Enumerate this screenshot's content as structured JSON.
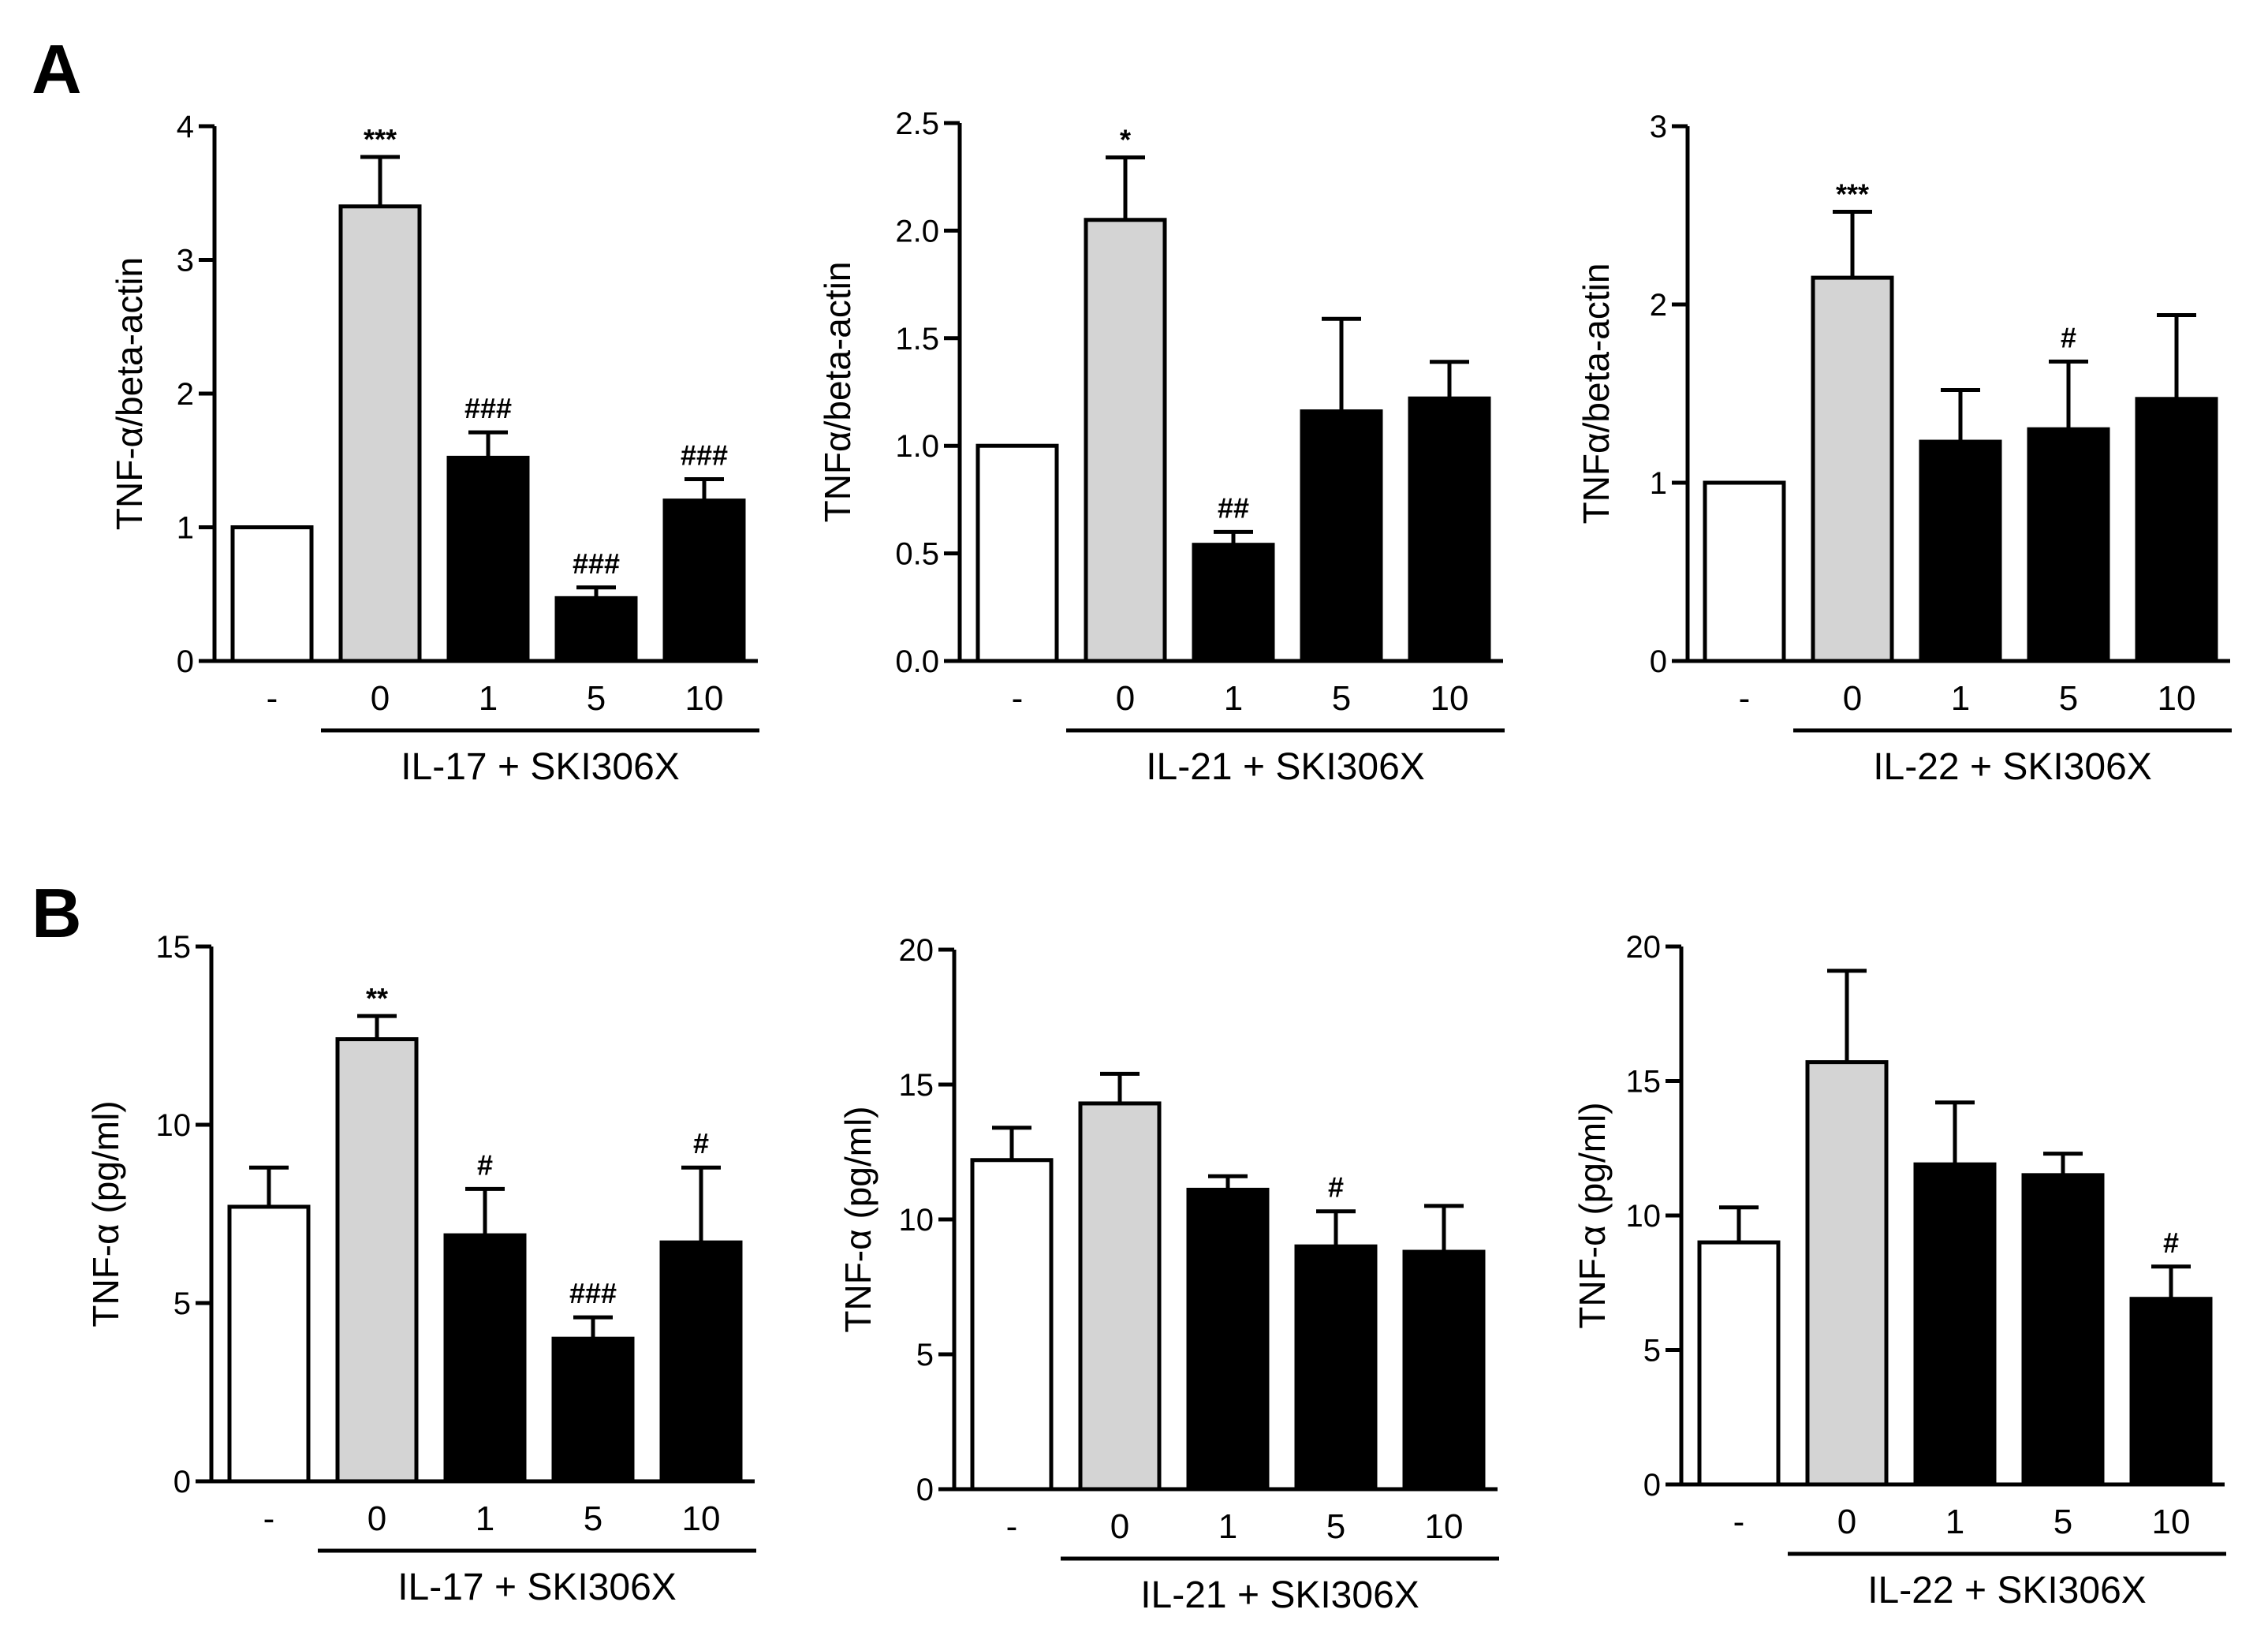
{
  "panels": [
    {
      "letter": "A",
      "row": 0
    },
    {
      "letter": "B",
      "row": 1
    }
  ],
  "chart_data": [
    {
      "type": "bar",
      "panel": "A",
      "title": "",
      "xlabel": "IL-17 + SKI306X",
      "ylabel": "TNF-α/beta-actin",
      "categories": [
        "-",
        "0",
        "1",
        "5",
        "10"
      ],
      "bar_fill": [
        "white",
        "lightgray",
        "black",
        "black",
        "black"
      ],
      "values": [
        1.0,
        3.4,
        1.52,
        0.47,
        1.2
      ],
      "errors": [
        0,
        0.37,
        0.19,
        0.08,
        0.16
      ],
      "annotations": [
        "",
        "***",
        "###",
        "###",
        "###"
      ],
      "ylim": [
        0,
        4
      ],
      "yticks": [
        0,
        1,
        2,
        3,
        4
      ],
      "ytick_labels": [
        "0",
        "1",
        "2",
        "3",
        "4"
      ]
    },
    {
      "type": "bar",
      "panel": "A",
      "title": "",
      "xlabel": "IL-21 + SKI306X",
      "ylabel": "TNFα/beta-actin",
      "categories": [
        "-",
        "0",
        "1",
        "5",
        "10"
      ],
      "bar_fill": [
        "white",
        "lightgray",
        "black",
        "black",
        "black"
      ],
      "values": [
        1.0,
        2.05,
        0.54,
        1.16,
        1.22
      ],
      "errors": [
        0,
        0.29,
        0.06,
        0.43,
        0.17
      ],
      "annotations": [
        "",
        "*",
        "##",
        "",
        ""
      ],
      "ylim": [
        0,
        2.5
      ],
      "yticks": [
        0,
        0.5,
        1,
        1.5,
        2,
        2.5
      ],
      "ytick_labels": [
        "0.0",
        "0.5",
        "1.0",
        "1.5",
        "2.0",
        "2.5"
      ]
    },
    {
      "type": "bar",
      "panel": "A",
      "title": "",
      "xlabel": "IL-22 + SKI306X",
      "ylabel": "TNFα/beta-actin",
      "categories": [
        "-",
        "0",
        "1",
        "5",
        "10"
      ],
      "bar_fill": [
        "white",
        "lightgray",
        "black",
        "black",
        "black"
      ],
      "values": [
        1.0,
        2.15,
        1.23,
        1.3,
        1.47
      ],
      "errors": [
        0,
        0.37,
        0.29,
        0.38,
        0.47
      ],
      "annotations": [
        "",
        "***",
        "",
        "#",
        ""
      ],
      "ylim": [
        0,
        3
      ],
      "yticks": [
        0,
        1,
        2,
        3
      ],
      "ytick_labels": [
        "0",
        "1",
        "2",
        "3"
      ]
    },
    {
      "type": "bar",
      "panel": "B",
      "title": "",
      "xlabel": "IL-17 + SKI306X",
      "ylabel": "TNF-α (pg/ml)",
      "categories": [
        "-",
        "0",
        "1",
        "5",
        "10"
      ],
      "bar_fill": [
        "white",
        "lightgray",
        "black",
        "black",
        "black"
      ],
      "values": [
        7.7,
        12.4,
        6.9,
        4.0,
        6.7
      ],
      "errors": [
        1.1,
        0.65,
        1.3,
        0.6,
        2.1
      ],
      "annotations": [
        "",
        "**",
        "#",
        "###",
        "#"
      ],
      "ylim": [
        0,
        15
      ],
      "yticks": [
        0,
        5,
        10,
        15
      ],
      "ytick_labels": [
        "0",
        "5",
        "10",
        "15"
      ]
    },
    {
      "type": "bar",
      "panel": "B",
      "title": "",
      "xlabel": "IL-21 + SKI306X",
      "ylabel": "TNF-α (pg/ml)",
      "categories": [
        "-",
        "0",
        "1",
        "5",
        "10"
      ],
      "bar_fill": [
        "white",
        "lightgray",
        "black",
        "black",
        "black"
      ],
      "values": [
        12.2,
        14.3,
        11.1,
        9.0,
        8.8
      ],
      "errors": [
        1.2,
        1.1,
        0.5,
        1.3,
        1.7
      ],
      "annotations": [
        "",
        "",
        "",
        "#",
        ""
      ],
      "ylim": [
        0,
        20
      ],
      "yticks": [
        0,
        5,
        10,
        15,
        20
      ],
      "ytick_labels": [
        "0",
        "5",
        "10",
        "15",
        "20"
      ]
    },
    {
      "type": "bar",
      "panel": "B",
      "title": "",
      "xlabel": "IL-22 + SKI306X",
      "ylabel": "TNF-α (pg/ml)",
      "categories": [
        "-",
        "0",
        "1",
        "5",
        "10"
      ],
      "bar_fill": [
        "white",
        "lightgray",
        "black",
        "black",
        "black"
      ],
      "values": [
        9.0,
        15.7,
        11.9,
        11.5,
        6.9
      ],
      "errors": [
        1.3,
        3.4,
        2.3,
        0.8,
        1.2
      ],
      "annotations": [
        "",
        "",
        "",
        "",
        "#"
      ],
      "ylim": [
        0,
        20
      ],
      "yticks": [
        0,
        5,
        10,
        15,
        20
      ],
      "ytick_labels": [
        "0",
        "5",
        "10",
        "15",
        "20"
      ]
    }
  ]
}
